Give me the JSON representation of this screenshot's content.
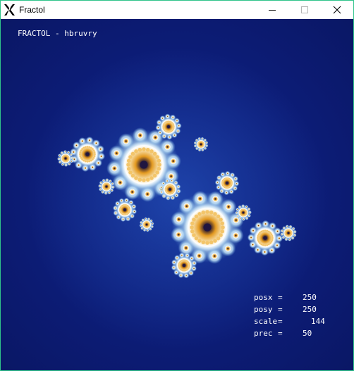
{
  "window": {
    "title": "Fractol",
    "app_icon": "x11-icon",
    "controls": [
      "minimize-icon",
      "maximize-icon",
      "close-icon"
    ]
  },
  "canvas": {
    "header": "FRACTOL - hbruvry",
    "info": [
      {
        "label": "posx",
        "eq": "=",
        "value": "250"
      },
      {
        "label": "posy",
        "eq": "=",
        "value": "250"
      },
      {
        "label": "scale",
        "eq": "=",
        "value": "144"
      },
      {
        "label": "prec",
        "eq": "=",
        "value": "50"
      }
    ],
    "colors": {
      "background": "#0d1e7c",
      "fractal_edge": "#a9d3ef",
      "fractal_mid": "#f2f6fb",
      "fractal_core": "#e7a62d",
      "fractal_center": "#2a1c4d"
    }
  }
}
